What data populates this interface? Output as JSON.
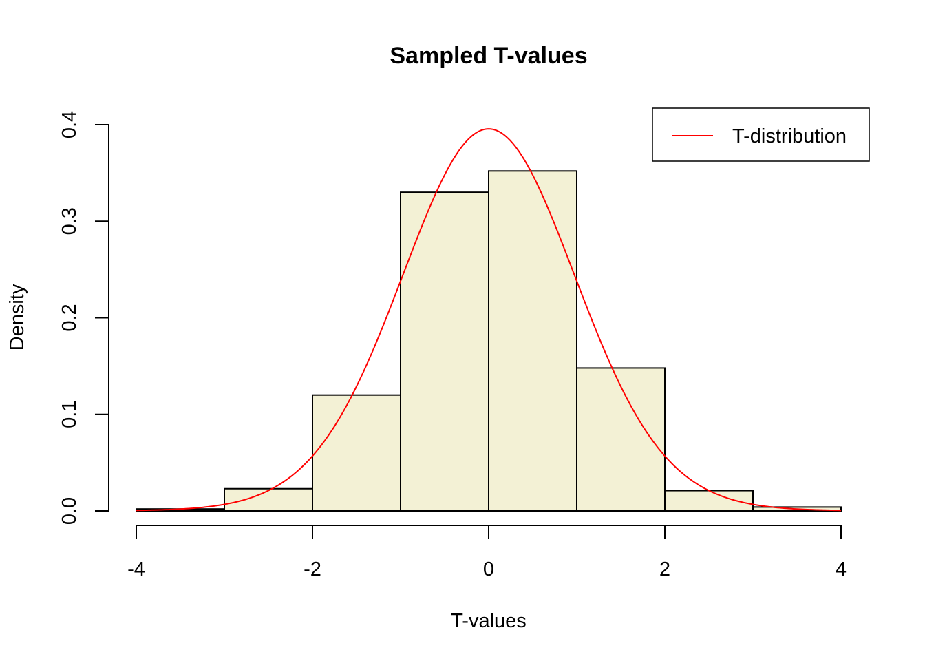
{
  "chart_data": {
    "type": "bar",
    "title": "Sampled T-values",
    "xlabel": "T-values",
    "ylabel": "Density",
    "xlim": [
      -4,
      4
    ],
    "ylim": [
      0,
      0.4
    ],
    "x_ticks": [
      -4,
      -2,
      0,
      2,
      4
    ],
    "y_ticks": [
      0.0,
      0.1,
      0.2,
      0.3,
      0.4
    ],
    "x_tick_labels": [
      "-4",
      "-2",
      "0",
      "2",
      "4"
    ],
    "y_tick_labels": [
      "0.0",
      "0.1",
      "0.2",
      "0.3",
      "0.4"
    ],
    "bins": [
      {
        "start": -4,
        "end": -3,
        "density": 0.002
      },
      {
        "start": -3,
        "end": -2,
        "density": 0.023
      },
      {
        "start": -2,
        "end": -1,
        "density": 0.12
      },
      {
        "start": -1,
        "end": 0,
        "density": 0.33
      },
      {
        "start": 0,
        "end": 1,
        "density": 0.352
      },
      {
        "start": 1,
        "end": 2,
        "density": 0.148
      },
      {
        "start": 2,
        "end": 3,
        "density": 0.021
      },
      {
        "start": 3,
        "end": 4,
        "density": 0.004
      }
    ],
    "bar_fill": "#f3f1d5",
    "bar_stroke": "#000000",
    "series": [
      {
        "name": "T-distribution",
        "type": "line",
        "color": "#ff0000",
        "function": "t-density",
        "df": 30
      }
    ],
    "legend": {
      "position": "top-right",
      "entries": [
        "T-distribution"
      ]
    },
    "grid": false
  }
}
